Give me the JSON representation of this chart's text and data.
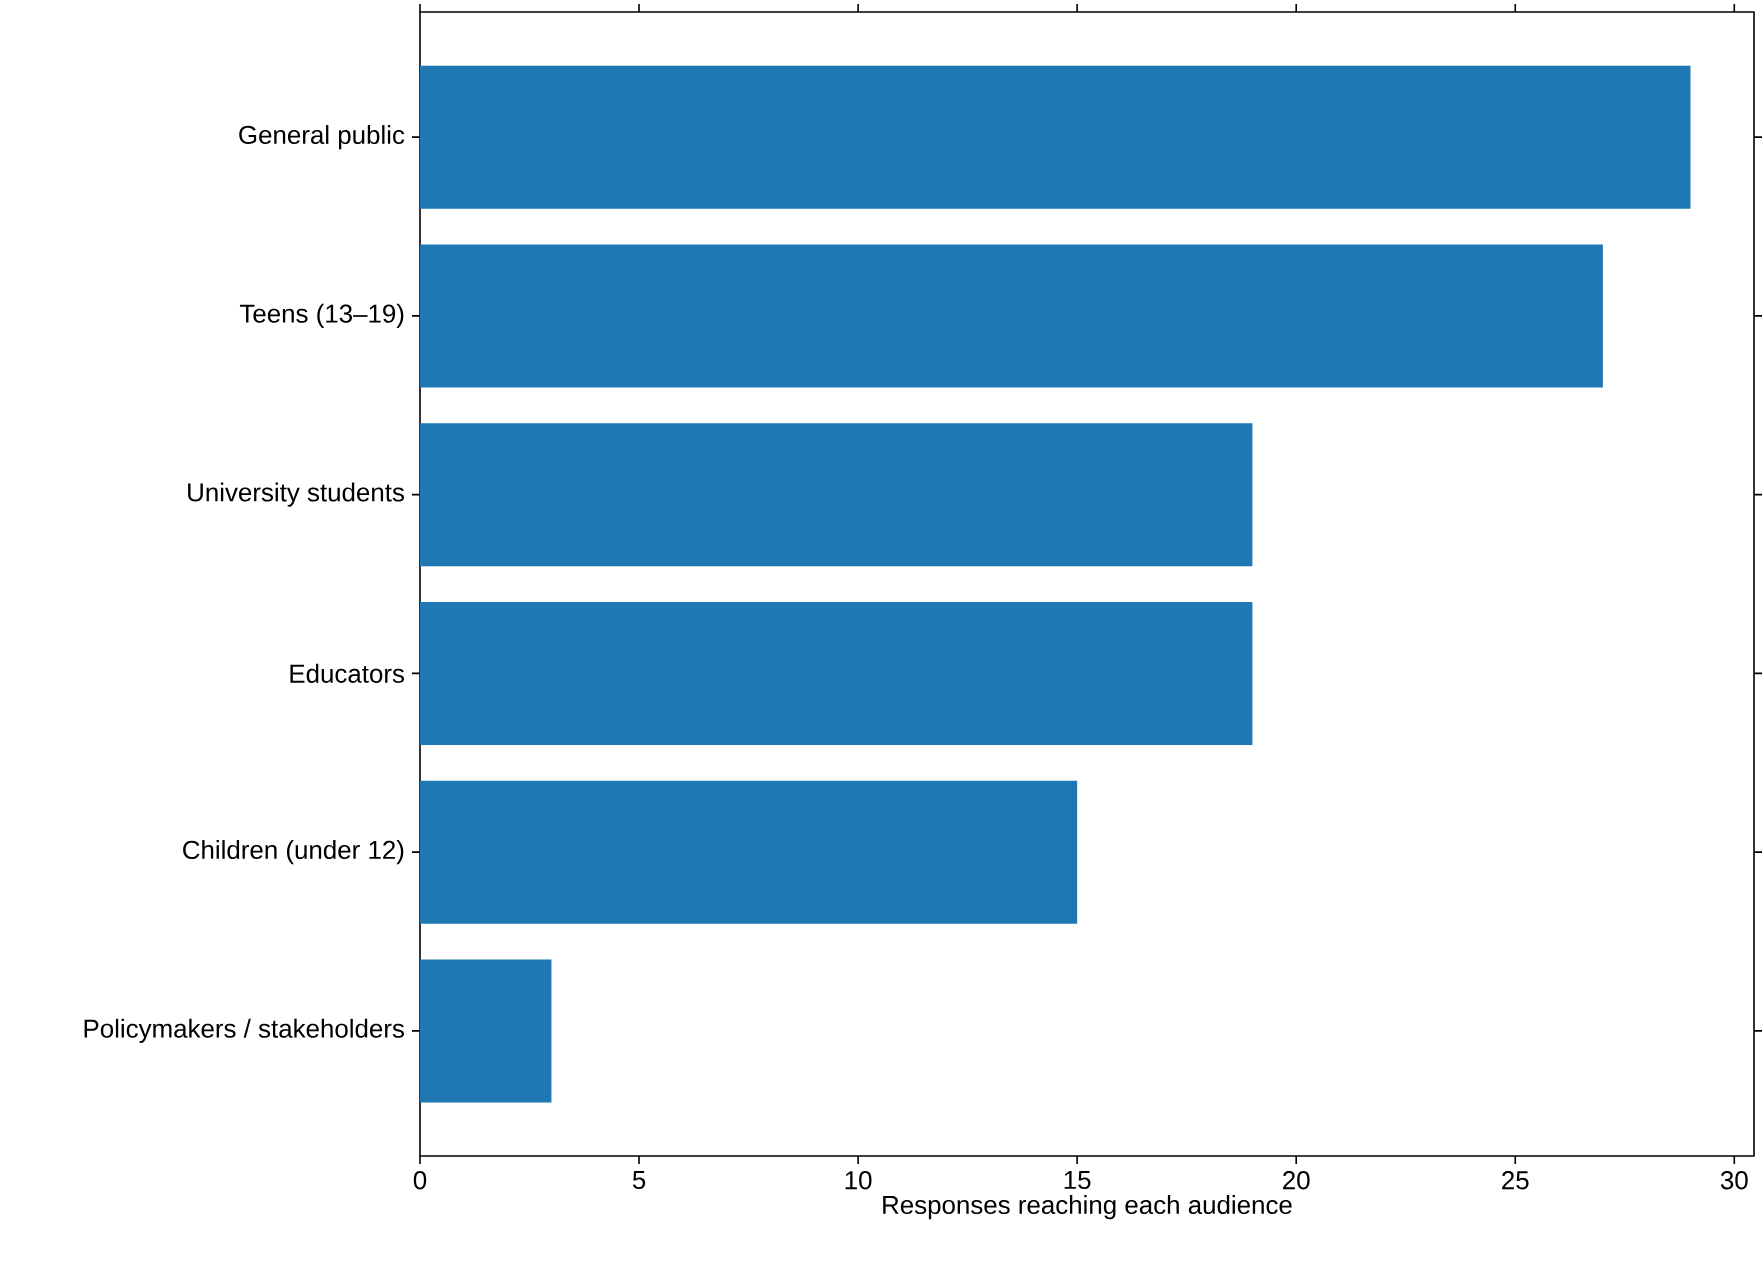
{
  "chart_data": {
    "type": "bar",
    "orientation": "horizontal",
    "categories": [
      "General public",
      "Teens (13–19)",
      "University students",
      "Educators",
      "Children (under 12)",
      "Policymakers / stakeholders"
    ],
    "values": [
      29,
      27,
      19,
      19,
      15,
      3
    ],
    "color": "#1f77b4",
    "xlabel": "Responses reaching each audience",
    "xlim": [
      0,
      30.45
    ],
    "xticks": [
      0,
      5,
      10,
      15,
      20,
      25,
      30
    ]
  }
}
